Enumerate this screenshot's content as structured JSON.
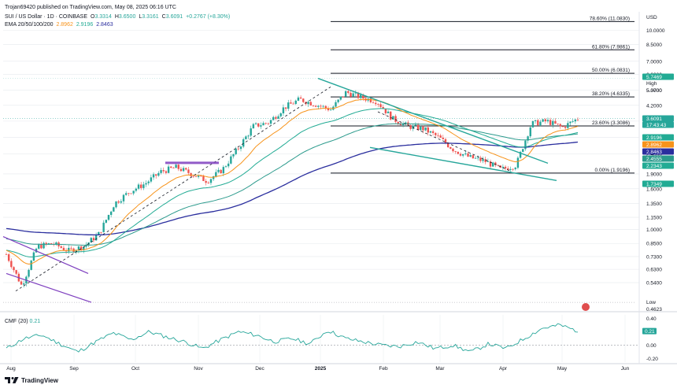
{
  "header": {
    "published": "Trojan69420 published on TradingView.com, May 08, 2025 06:16 UTC",
    "symbol": "SUI / US Dollar · 1D · COINBASE",
    "ohlc": [
      {
        "label": "O",
        "value": "3.3314"
      },
      {
        "label": "H",
        "value": "3.6500"
      },
      {
        "label": "L",
        "value": "3.3161"
      },
      {
        "label": "C",
        "value": "3.6091"
      },
      {
        "label": "",
        "value": "+0.2767 (+8.30%)"
      }
    ],
    "ema_title": "EMA 20/50/100/200",
    "ema_values": [
      "2.8962",
      "2.9196",
      "2.8463"
    ]
  },
  "colors": {
    "up": "#26a69a",
    "down": "#ef5350",
    "ema20": "#f7931a",
    "ema50": "#22ab94",
    "ema100": "#2b9a8c",
    "ema200": "#2a2e9e",
    "trend": "#26a69a",
    "purple": "#7e3fbf",
    "fib": "#131722",
    "grid": "#e6e9ee",
    "cmf": "#26a69a",
    "bg": "#ffffff"
  },
  "chart_data": {
    "type": "candlestick",
    "y_scale": "log",
    "currency": "USD",
    "x_ticks": [
      "Aug",
      "Sep",
      "Oct",
      "Nov",
      "Dec",
      "2025",
      "Feb",
      "Mar",
      "Apr",
      "May",
      "Jun"
    ],
    "y_ticks": [
      "10.0000",
      "8.5000",
      "7.0000",
      "6.0000",
      "5.0000",
      "4.2000",
      "3.5000",
      "2.9000",
      "2.4000",
      "1.9000",
      "1.6000",
      "1.3500",
      "1.1500",
      "1.0000",
      "0.8500",
      "0.7300",
      "0.6300",
      "0.5400"
    ],
    "close_path": [
      [
        "Aug",
        0.75
      ],
      [
        "Aug",
        0.52
      ],
      [
        "Aug",
        0.82
      ],
      [
        "Aug",
        0.85
      ],
      [
        "Aug",
        0.78
      ],
      [
        "Sep",
        0.82
      ],
      [
        "Sep",
        0.95
      ],
      [
        "Sep",
        1.35
      ],
      [
        "Sep",
        1.55
      ],
      [
        "Sep",
        1.7
      ],
      [
        "Oct",
        1.95
      ],
      [
        "Oct",
        2.05
      ],
      [
        "Oct",
        1.9
      ],
      [
        "Oct",
        1.75
      ],
      [
        "Nov",
        2.0
      ],
      [
        "Nov",
        2.55
      ],
      [
        "Nov",
        3.3
      ],
      [
        "Nov",
        3.45
      ],
      [
        "Dec",
        4.1
      ],
      [
        "Dec",
        4.5
      ],
      [
        "Dec",
        4.25
      ],
      [
        "Dec",
        4.0
      ],
      [
        "2025",
        4.9
      ],
      [
        "2025",
        4.6
      ],
      [
        "2025",
        4.4
      ],
      [
        "Feb",
        3.6
      ],
      [
        "Feb",
        3.3
      ],
      [
        "Feb",
        3.2
      ],
      [
        "Mar",
        2.9
      ],
      [
        "Mar",
        2.5
      ],
      [
        "Mar",
        2.3
      ],
      [
        "Apr",
        2.2
      ],
      [
        "Apr",
        2.0
      ],
      [
        "Apr",
        2.1
      ],
      [
        "Apr",
        3.4
      ],
      [
        "May",
        3.5
      ],
      [
        "May",
        3.25
      ],
      [
        "May",
        3.61
      ]
    ],
    "ema_series": [
      "EMA 20",
      "EMA 50",
      "EMA 100",
      "EMA 200"
    ],
    "fib_levels": [
      {
        "label": "61.80% (7.9861)",
        "value": 7.9861
      },
      {
        "label": "50.00% (6.0831)",
        "value": 6.0831
      },
      {
        "label": "38.20% (4.6335)",
        "value": 4.6335
      },
      {
        "label": "23.60% (3.3086)",
        "value": 3.3086
      },
      {
        "label": "0.00% (1.9196)",
        "value": 1.9196
      }
    ],
    "top_level_partial": "78.60% (11.0830)",
    "price_badges": [
      {
        "label": "5.7469",
        "bg": "#22ab94"
      },
      {
        "label": "High",
        "bg": "",
        "plain": true
      },
      {
        "label": "5.3700",
        "bg": "",
        "plain": true
      },
      {
        "label": "3.6091",
        "bg": "#26a69a"
      },
      {
        "label": "17:43:43",
        "bg": "#26a69a"
      },
      {
        "label": "2.9196",
        "bg": "#22ab94"
      },
      {
        "label": "2.8962",
        "bg": "#f7931a"
      },
      {
        "label": "2.8463",
        "bg": "#2a2e9e"
      },
      {
        "label": "2.4555",
        "bg": "#2b9a8c"
      },
      {
        "label": "2.2343",
        "bg": "#22ab94"
      },
      {
        "label": "1.7349",
        "bg": "#22ab94"
      },
      {
        "label": "Low",
        "bg": "",
        "plain": true
      },
      {
        "label": "0.4623",
        "bg": "",
        "plain": true
      }
    ]
  },
  "cmf": {
    "title": "CMF (20)",
    "value": "0.21",
    "y_ticks": [
      "0.40",
      "0.00",
      "-0.20"
    ]
  },
  "brand": "TradingView"
}
